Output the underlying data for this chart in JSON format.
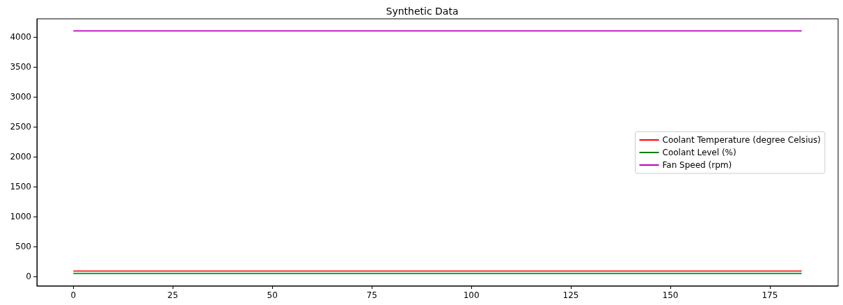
{
  "chart_data": {
    "type": "line",
    "title": "Synthetic Data",
    "x": [
      0,
      183
    ],
    "series": [
      {
        "name": "Coolant Temperature (degree Celsius)",
        "color": "#ff0000",
        "values": [
          90,
          90
        ]
      },
      {
        "name": "Coolant Level (%)",
        "color": "#008000",
        "values": [
          50,
          50
        ]
      },
      {
        "name": "Fan Speed (rpm)",
        "color": "#bf00bf",
        "values": [
          4100,
          4100
        ]
      }
    ],
    "xlim": [
      -9.15,
      192.15
    ],
    "xticks": [
      0,
      25,
      50,
      75,
      100,
      125,
      150,
      175
    ],
    "ylim": [
      -152,
      4302
    ],
    "yticks": [
      0,
      500,
      1000,
      1500,
      2000,
      2500,
      3000,
      3500,
      4000
    ],
    "grid": false,
    "legend": "right",
    "marker": "none",
    "line_style": "solid"
  }
}
